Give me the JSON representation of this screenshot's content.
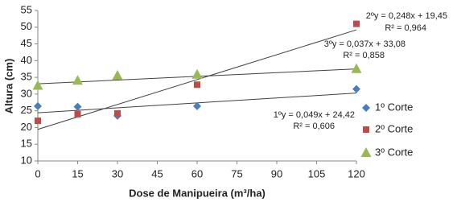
{
  "chart_data": {
    "type": "scatter",
    "x_label": "Dose de Manipueira (m³/ha)",
    "y_label": "Altura (cm)",
    "xlim": [
      0,
      120
    ],
    "xticks": [
      0,
      15,
      30,
      45,
      60,
      75,
      90,
      105,
      120
    ],
    "ylim": [
      10,
      55
    ],
    "yticks": [
      10,
      15,
      20,
      25,
      30,
      35,
      40,
      45,
      50,
      55
    ],
    "series": [
      {
        "name": "1º Corte",
        "color": "#4a7ebb",
        "marker": "diamond",
        "x": [
          0,
          15,
          30,
          60,
          120
        ],
        "values": [
          26.4,
          26.2,
          23.5,
          26.4,
          31.5
        ],
        "trendline": {
          "equation": "1ºy = 0,049x + 24,42",
          "r2": "R² = 0,606",
          "slope": 0.049,
          "intercept": 24.42
        }
      },
      {
        "name": "2º Corte",
        "color": "#be4b48",
        "marker": "square",
        "x": [
          0,
          15,
          30,
          60,
          120
        ],
        "values": [
          22,
          24,
          24.2,
          32.8,
          51
        ],
        "trendline": {
          "equation": "2ºy = 0,248x + 19,45",
          "r2": "R² = 0,964",
          "slope": 0.248,
          "intercept": 19.45
        }
      },
      {
        "name": "3º Corte",
        "color": "#98b954",
        "marker": "triangle",
        "x": [
          0,
          15,
          30,
          60,
          120
        ],
        "values": [
          32.5,
          34,
          35.5,
          35.8,
          37.5
        ],
        "trendline": {
          "equation": "3ºy = 0,037x + 33,08",
          "r2": "R² = 0,858",
          "slope": 0.037,
          "intercept": 33.08
        }
      }
    ],
    "trendline_color": "#404040"
  }
}
